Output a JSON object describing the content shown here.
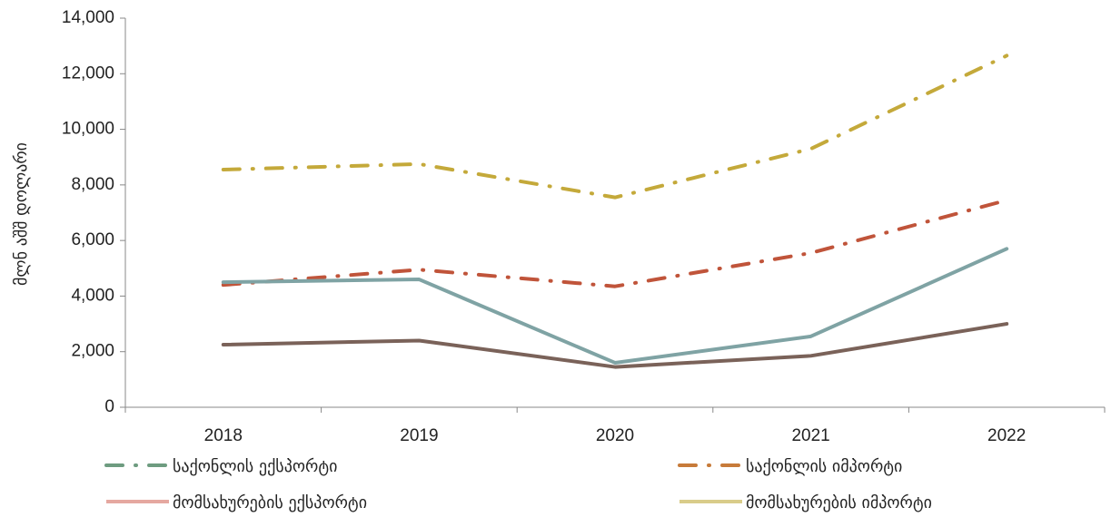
{
  "chart_data": {
    "type": "line",
    "title": "",
    "xlabel": "",
    "ylabel": "მლნ აშშ დოლარი",
    "categories": [
      "2018",
      "2019",
      "2020",
      "2021",
      "2022"
    ],
    "ylim": [
      0,
      14000
    ],
    "yticks": [
      0,
      2000,
      4000,
      6000,
      8000,
      10000,
      12000,
      14000
    ],
    "ytick_labels": [
      "0",
      "2,000",
      "4,000",
      "6,000",
      "8,000",
      "10,000",
      "12,000",
      "14,000"
    ],
    "grid": false,
    "legend_position": "bottom",
    "series": [
      {
        "name": "საქონლის იმპორტი",
        "values": [
          8550,
          8750,
          7550,
          9300,
          12650
        ],
        "plot_color": "#C4A93A",
        "legend_color": "#C77B3A",
        "style": "dash-dot"
      },
      {
        "name": "საქონლის ექსპორტი",
        "values": [
          4400,
          4950,
          4350,
          5550,
          7450
        ],
        "plot_color": "#C0543A",
        "legend_color": "#6E9C80",
        "style": "dash-dot"
      },
      {
        "name": "მომსახურების იმპორტი",
        "values": [
          4500,
          4600,
          1600,
          2550,
          5700
        ],
        "plot_color": "#7FA3A4",
        "legend_color": "#D9CC8A",
        "style": "solid"
      },
      {
        "name": "მომსახურების ექსპორტი",
        "values": [
          2250,
          2400,
          1450,
          1850,
          3000
        ],
        "plot_color": "#7A6259",
        "legend_color": "#E5A8A0",
        "style": "solid"
      }
    ]
  }
}
